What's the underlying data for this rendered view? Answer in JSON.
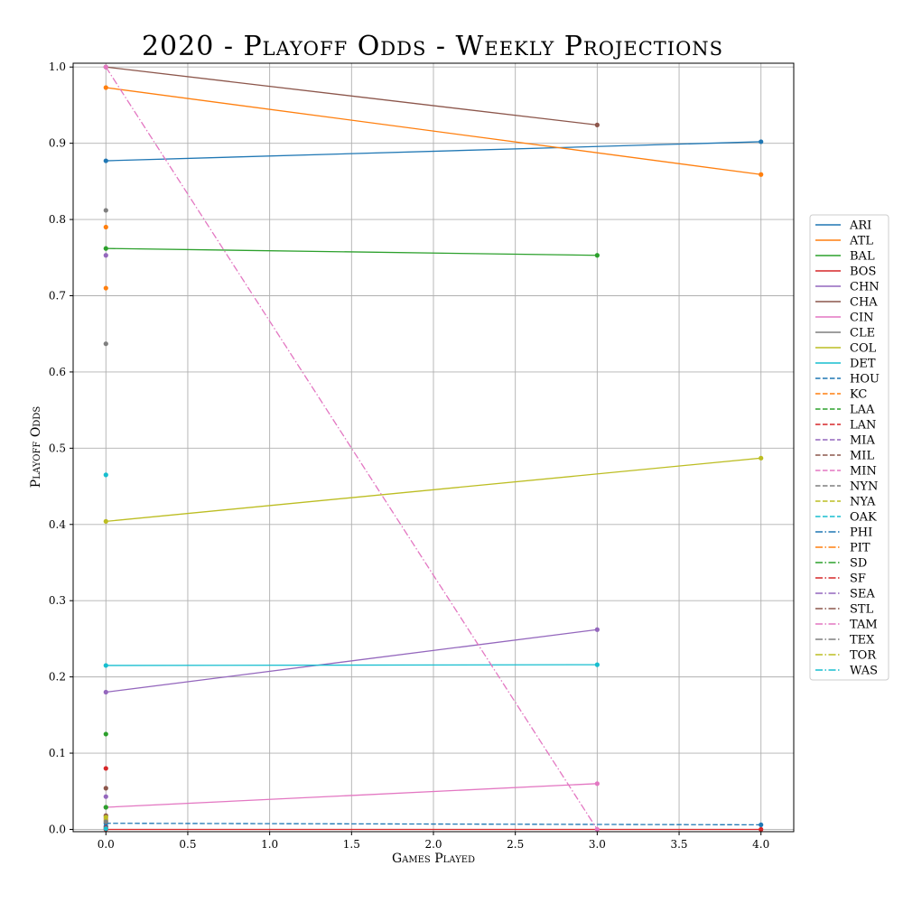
{
  "chart_data": {
    "type": "line",
    "title": "2020 - Playoff Odds - Weekly Projections",
    "xlabel": "Games Played",
    "ylabel": "Playoff Odds",
    "xlim": [
      -0.2,
      4.2
    ],
    "ylim": [
      -0.003,
      1.005
    ],
    "xticks": [
      0.0,
      0.5,
      1.0,
      1.5,
      2.0,
      2.5,
      3.0,
      3.5,
      4.0
    ],
    "xtick_labels": [
      "0.0",
      "0.5",
      "1.0",
      "1.5",
      "2.0",
      "2.5",
      "3.0",
      "3.5",
      "4.0"
    ],
    "yticks": [
      0.0,
      0.1,
      0.2,
      0.3,
      0.4,
      0.5,
      0.6,
      0.7,
      0.8,
      0.9,
      1.0
    ],
    "ytick_labels": [
      "0.0",
      "0.1",
      "0.2",
      "0.3",
      "0.4",
      "0.5",
      "0.6",
      "0.7",
      "0.8",
      "0.9",
      "1.0"
    ],
    "grid": true,
    "legend_position": "center-right",
    "series": [
      {
        "name": "ARI",
        "color": "#1f77b4",
        "dash": "solid",
        "points": [
          [
            0,
            0.877
          ],
          [
            4,
            0.902
          ]
        ]
      },
      {
        "name": "ATL",
        "color": "#ff7f0e",
        "dash": "solid",
        "points": [
          [
            0,
            0.973
          ],
          [
            4,
            0.859
          ]
        ]
      },
      {
        "name": "BAL",
        "color": "#2ca02c",
        "dash": "solid",
        "points": [
          [
            0,
            0.762
          ],
          [
            3,
            0.753
          ]
        ]
      },
      {
        "name": "BOS",
        "color": "#d62728",
        "dash": "solid",
        "points": [
          [
            0,
            0.0
          ],
          [
            4,
            0.0
          ]
        ]
      },
      {
        "name": "CHN",
        "color": "#9467bd",
        "dash": "solid",
        "points": [
          [
            0,
            0.18
          ],
          [
            3,
            0.262
          ]
        ]
      },
      {
        "name": "CHA",
        "color": "#8c564b",
        "dash": "solid",
        "points": [
          [
            0,
            1.0
          ],
          [
            3,
            0.924
          ]
        ]
      },
      {
        "name": "CIN",
        "color": "#e377c2",
        "dash": "solid",
        "points": [
          [
            0,
            0.029
          ],
          [
            3,
            0.06
          ]
        ]
      },
      {
        "name": "CLE",
        "color": "#7f7f7f",
        "dash": "solid",
        "points": [
          [
            0,
            0.637
          ]
        ]
      },
      {
        "name": "COL",
        "color": "#bcbd22",
        "dash": "solid",
        "points": [
          [
            0,
            0.404
          ],
          [
            4,
            0.487
          ]
        ]
      },
      {
        "name": "DET",
        "color": "#17becf",
        "dash": "solid",
        "points": [
          [
            0,
            0.215
          ],
          [
            3,
            0.216
          ]
        ]
      },
      {
        "name": "HOU",
        "color": "#1f77b4",
        "dash": "dashed",
        "points": [
          [
            0,
            0.008
          ],
          [
            4,
            0.006
          ]
        ]
      },
      {
        "name": "KC",
        "color": "#ff7f0e",
        "dash": "dashed",
        "points": [
          [
            0,
            0.71
          ]
        ]
      },
      {
        "name": "LAA",
        "color": "#2ca02c",
        "dash": "dashed",
        "points": [
          [
            0,
            0.125
          ]
        ]
      },
      {
        "name": "LAN",
        "color": "#d62728",
        "dash": "dashed",
        "points": [
          [
            0,
            0.08
          ]
        ]
      },
      {
        "name": "MIA",
        "color": "#9467bd",
        "dash": "dashed",
        "points": [
          [
            0,
            0.043
          ]
        ]
      },
      {
        "name": "MIL",
        "color": "#8c564b",
        "dash": "dashed",
        "points": [
          [
            0,
            0.054
          ]
        ]
      },
      {
        "name": "MIN",
        "color": "#e377c2",
        "dash": "dashed",
        "points": [
          [
            0,
            0.014
          ]
        ]
      },
      {
        "name": "NYN",
        "color": "#7f7f7f",
        "dash": "dashed",
        "points": [
          [
            0,
            0.812
          ]
        ]
      },
      {
        "name": "NYA",
        "color": "#bcbd22",
        "dash": "dashed",
        "points": [
          [
            0,
            0.012
          ]
        ]
      },
      {
        "name": "OAK",
        "color": "#17becf",
        "dash": "dashed",
        "points": [
          [
            0,
            0.465
          ]
        ]
      },
      {
        "name": "PHI",
        "color": "#1f77b4",
        "dash": "dashdot",
        "points": [
          [
            0,
            0.004
          ]
        ]
      },
      {
        "name": "PIT",
        "color": "#ff7f0e",
        "dash": "dashdot",
        "points": [
          [
            0,
            0.79
          ]
        ]
      },
      {
        "name": "SD",
        "color": "#2ca02c",
        "dash": "dashdot",
        "points": [
          [
            0,
            0.029
          ]
        ]
      },
      {
        "name": "SF",
        "color": "#d62728",
        "dash": "dashdot",
        "points": [
          [
            0,
            0.002
          ]
        ]
      },
      {
        "name": "SEA",
        "color": "#9467bd",
        "dash": "dashdot",
        "points": [
          [
            0,
            0.753
          ]
        ]
      },
      {
        "name": "STL",
        "color": "#8c564b",
        "dash": "dashdot",
        "points": [
          [
            0,
            0.018
          ]
        ]
      },
      {
        "name": "TAM",
        "color": "#e377c2",
        "dash": "dashdot",
        "points": [
          [
            0,
            1.0
          ],
          [
            3,
            0.0
          ]
        ]
      },
      {
        "name": "TEX",
        "color": "#7f7f7f",
        "dash": "dashdot",
        "points": [
          [
            0,
            0.01
          ]
        ]
      },
      {
        "name": "TOR",
        "color": "#bcbd22",
        "dash": "dashdot",
        "points": [
          [
            0,
            0.016
          ]
        ]
      },
      {
        "name": "WAS",
        "color": "#17becf",
        "dash": "dashdot",
        "points": [
          [
            0,
            0.001
          ]
        ]
      }
    ]
  }
}
